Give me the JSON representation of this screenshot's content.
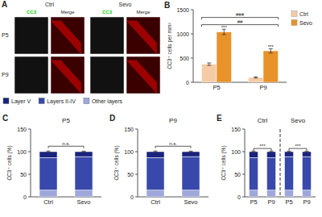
{
  "chart_data": [
    {
      "type": "image_grid",
      "title": "A",
      "categories": [
        "P5",
        "P9"
      ],
      "x": [
        "CC3",
        "Merge"
      ],
      "color": "#00CC00",
      "series": [
        {
          "name": "Ctrl"
        },
        {
          "name": "Sevo"
        }
      ]
    },
    {
      "type": "bar",
      "title": "B",
      "ylabel": "CC3⁺ cells per mm²",
      "categories": [
        "P5",
        "P9"
      ],
      "series": [
        {
          "name": "Ctrl",
          "color": "#F5CBA7",
          "values": [
            375,
            100
          ],
          "errors": [
            25,
            12
          ]
        },
        {
          "name": "Sevo",
          "color": "#E8922A",
          "values": [
            1040,
            650
          ],
          "errors": [
            55,
            45
          ]
        }
      ],
      "ylim": [
        0,
        1500
      ],
      "yticks": [
        0,
        500,
        1000,
        1500
      ],
      "legend": "upper right",
      "annotations": [
        {
          "text": "***",
          "x": "P5",
          "series": "Sevo"
        },
        {
          "text": "***",
          "x": "P9",
          "series": "Sevo"
        },
        {
          "text": "##",
          "y": 1190,
          "from": 0,
          "to": 1
        },
        {
          "text": "###",
          "y": 1340,
          "from": 0,
          "to": 1
        }
      ]
    },
    {
      "type": "bar",
      "stacked": true,
      "title": "C",
      "subtitle": "P5",
      "ylabel": "CC3⁺ cells (%)",
      "categories": [
        "Ctrl",
        "Sevo"
      ],
      "series": [
        {
          "name": "Other layers",
          "color": "#9FA8DA",
          "values": [
            15,
            15
          ]
        },
        {
          "name": "Layers II-IV",
          "color": "#3949AB",
          "values": [
            72,
            74
          ]
        },
        {
          "name": "Layer V",
          "color": "#1A237E",
          "values": [
            13,
            11
          ],
          "errors": [
            1.5,
            1.2
          ]
        }
      ],
      "ylim": [
        0,
        150
      ],
      "yticks": [
        0,
        50,
        100,
        150
      ],
      "legend": "upper left",
      "annotations": [
        {
          "text": "n.s.",
          "y": 112,
          "from": 0,
          "to": 1
        }
      ]
    },
    {
      "type": "bar",
      "stacked": true,
      "title": "D",
      "subtitle": "P9",
      "ylabel": "CC3⁺ cells (%)",
      "categories": [
        "Ctrl",
        "Sevo"
      ],
      "series": [
        {
          "color": "#9FA8DA",
          "values": [
            15,
            15
          ]
        },
        {
          "color": "#3949AB",
          "values": [
            72,
            74
          ]
        },
        {
          "color": "#1A237E",
          "values": [
            13,
            11
          ],
          "errors": [
            1.5,
            1.2
          ]
        }
      ],
      "ylim": [
        0,
        150
      ],
      "yticks": [
        0,
        50,
        100,
        150
      ],
      "annotations": [
        {
          "text": "n.s.",
          "y": 112,
          "from": 0,
          "to": 1
        }
      ]
    },
    {
      "type": "bar",
      "stacked": true,
      "title": "E",
      "ylabel": "CC3⁺ cells (%)",
      "categories": [
        "P5",
        "P9",
        "P5",
        "P9"
      ],
      "series": [
        {
          "color": "#9FA8DA",
          "values": [
            15,
            15,
            15,
            15
          ]
        },
        {
          "color": "#3949AB",
          "values": [
            72,
            72,
            74,
            74
          ]
        },
        {
          "color": "#1A237E",
          "values": [
            13,
            13,
            11,
            11
          ],
          "errors": [
            1.5,
            1.5,
            1.2,
            1.2
          ]
        }
      ],
      "ylim": [
        0,
        150
      ],
      "yticks": [
        0,
        50,
        100,
        150
      ],
      "annotations": [
        {
          "text": "Ctrl",
          "from": 0,
          "to": 1
        },
        {
          "text": "Sevo",
          "from": 2,
          "to": 3
        },
        {
          "text": "***",
          "y": 107,
          "from": 0,
          "to": 1
        },
        {
          "text": "***",
          "y": 107,
          "from": 2,
          "to": 3
        }
      ]
    }
  ]
}
